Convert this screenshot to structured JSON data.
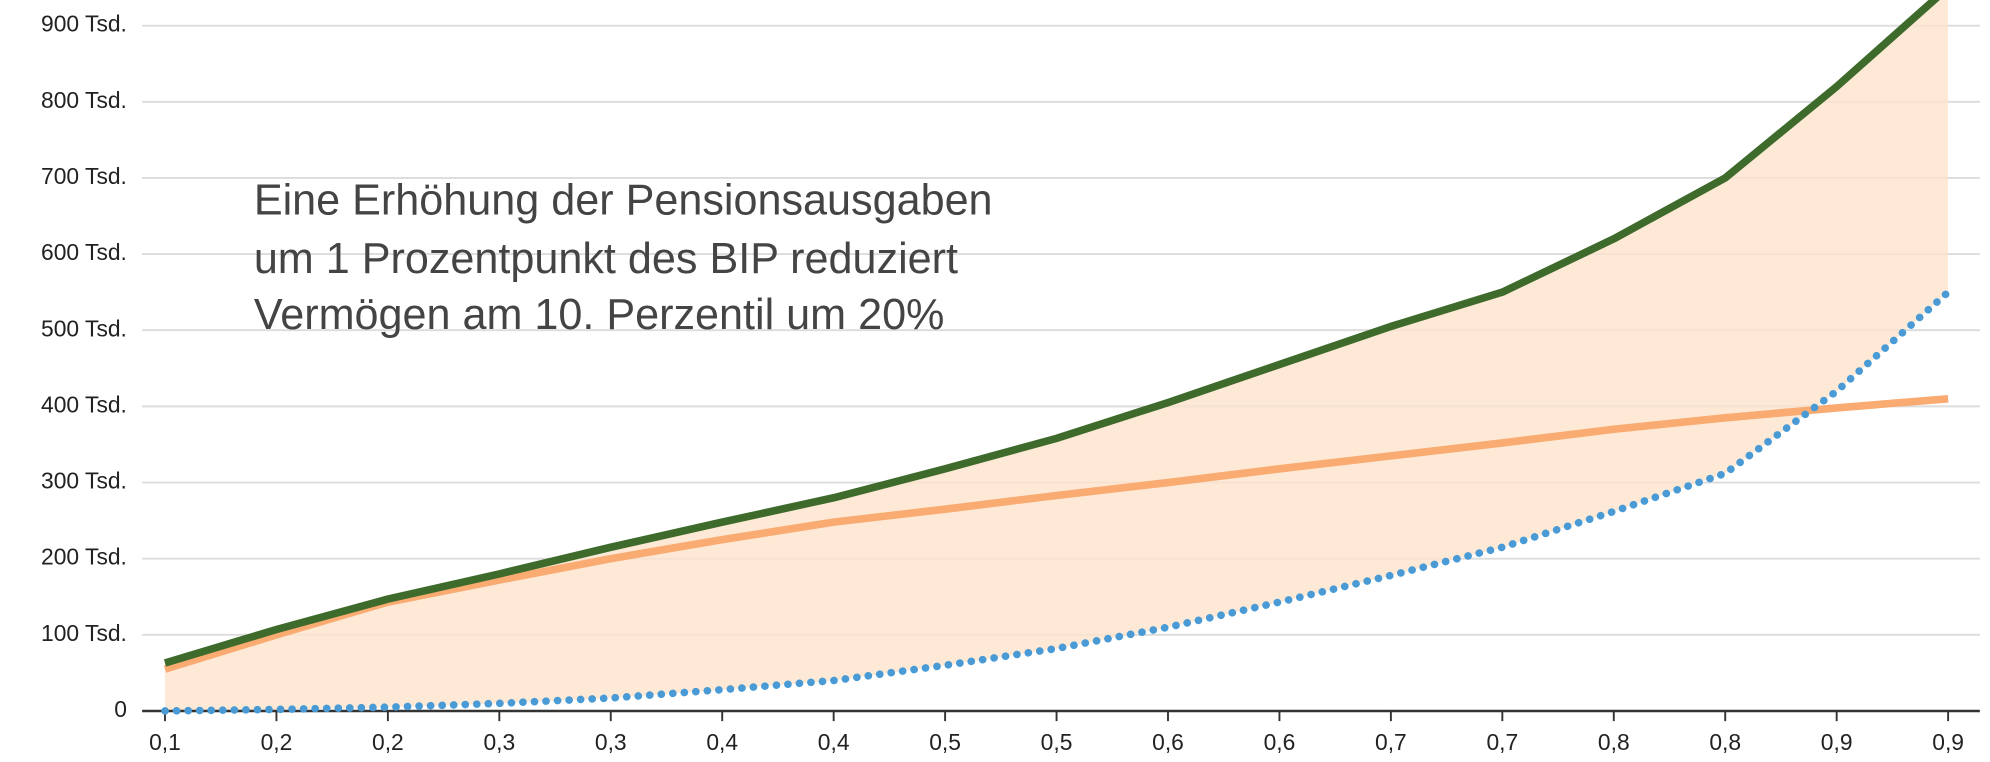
{
  "chart_data": {
    "type": "line",
    "annotation": [
      "Eine Erhöhung der Pensionsausgaben",
      "um 1 Prozentpunkt des BIP reduziert",
      "Vermögen am 10. Perzentil um 20%"
    ],
    "categories": [
      "0,1",
      "0,2",
      "0,2",
      "0,3",
      "0,3",
      "0,4",
      "0,4",
      "0,5",
      "0,5",
      "0,6",
      "0,6",
      "0,7",
      "0,7",
      "0,8",
      "0,8",
      "0,9",
      "0,9"
    ],
    "series": [
      {
        "color": "#3e6b2b",
        "style": "solid",
        "values": [
          63,
          107,
          147,
          180,
          215,
          248,
          280,
          318,
          358,
          405,
          455,
          505,
          550,
          620,
          700,
          820,
          950
        ]
      },
      {
        "color": "#f9ab72",
        "style": "solid",
        "values": [
          55,
          100,
          143,
          172,
          200,
          225,
          248,
          265,
          283,
          300,
          318,
          335,
          352,
          370,
          385,
          398,
          410
        ]
      },
      {
        "color": "#4a9bd5",
        "style": "dotted",
        "values": [
          0,
          2,
          5,
          10,
          17,
          28,
          40,
          60,
          82,
          110,
          143,
          178,
          215,
          262,
          312,
          420,
          550
        ]
      }
    ],
    "band_color": "#fde3cc",
    "ylim": [
      0,
      900
    ],
    "yticks": [
      0,
      {
        "value": 100,
        "label": "100 Tsd."
      },
      {
        "value": 200,
        "label": "200 Tsd."
      },
      {
        "value": 300,
        "label": "300 Tsd."
      },
      {
        "value": 400,
        "label": "400 Tsd."
      },
      {
        "value": 500,
        "label": "500 Tsd."
      },
      {
        "value": 600,
        "label": "600 Tsd."
      },
      {
        "value": 700,
        "label": "700 Tsd."
      },
      {
        "value": 800,
        "label": "800 Tsd."
      },
      {
        "value": 900,
        "label": "900 Tsd."
      }
    ],
    "grid": true
  }
}
